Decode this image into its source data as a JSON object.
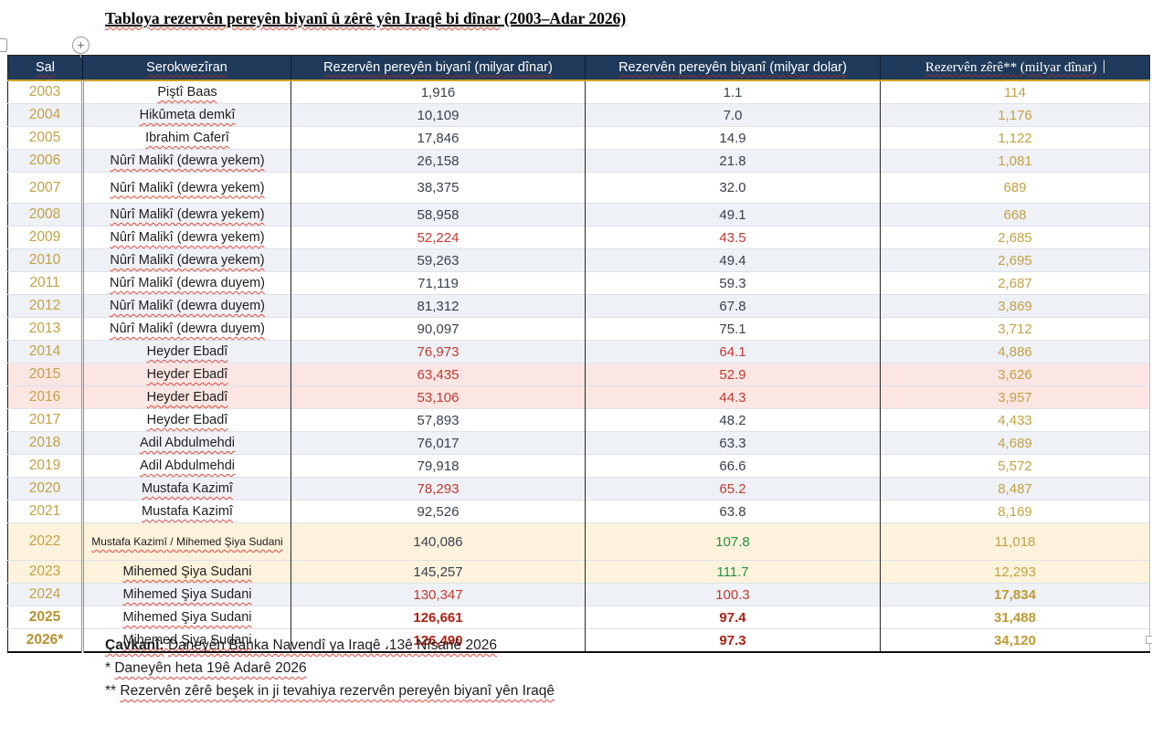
{
  "title": {
    "main": "Tabloya rezervên pereyên biyanî û zêrê yên Iraqê bi dînar",
    "suffix": "(2003–Adar 2026)"
  },
  "insert_column_button": {
    "glyph": "+"
  },
  "table": {
    "headers": [
      "Sal",
      "Serokwezîran",
      "Rezervên pereyên biyanî (milyar dînar)",
      "Rezervên pereyên biyanî (milyar dolar)",
      "Rezervên zêrê** (milyar dînar)"
    ],
    "rows": [
      {
        "year": "2003",
        "pm": "Piştî Baas",
        "dinar": "1,916",
        "dollar": "1.1",
        "gold": "114"
      },
      {
        "year": "2004",
        "pm": "Hikûmeta demkî",
        "dinar": "10,109",
        "dollar": "7.0",
        "gold": "1,176"
      },
      {
        "year": "2005",
        "pm": "Ibrahim Caferî",
        "dinar": "17,846",
        "dollar": "14.9",
        "gold": "1,122"
      },
      {
        "year": "2006",
        "pm": "Nûrî Malikî (dewra yekem)",
        "dinar": "26,158",
        "dollar": "21.8",
        "gold": "1,081"
      },
      {
        "year": "2007",
        "pm": "Nûrî Malikî (dewra yekem)",
        "dinar": "38,375",
        "dollar": "32.0",
        "gold": "689"
      },
      {
        "year": "2008",
        "pm": "Nûrî Malikî (dewra yekem)",
        "dinar": "58,958",
        "dollar": "49.1",
        "gold": "668"
      },
      {
        "year": "2009",
        "pm": "Nûrî Malikî (dewra yekem)",
        "dinar": "52,224",
        "dollar": "43.5",
        "gold": "2,685"
      },
      {
        "year": "2010",
        "pm": "Nûrî Malikî (dewra yekem)",
        "dinar": "59,263",
        "dollar": "49.4",
        "gold": "2,695"
      },
      {
        "year": "2011",
        "pm": "Nûrî Malikî (dewra duyem)",
        "dinar": "71,119",
        "dollar": "59.3",
        "gold": "2,687"
      },
      {
        "year": "2012",
        "pm": "Nûrî Malikî (dewra duyem)",
        "dinar": "81,312",
        "dollar": "67.8",
        "gold": "3,869"
      },
      {
        "year": "2013",
        "pm": "Nûrî Malikî (dewra duyem)",
        "dinar": "90,097",
        "dollar": "75.1",
        "gold": "3,712"
      },
      {
        "year": "2014",
        "pm": "Heyder Ebadî",
        "dinar": "76,973",
        "dollar": "64.1",
        "gold": "4,886"
      },
      {
        "year": "2015",
        "pm": "Heyder Ebadî",
        "dinar": "63,435",
        "dollar": "52.9",
        "gold": "3,626"
      },
      {
        "year": "2016",
        "pm": "Heyder Ebadî",
        "dinar": "53,106",
        "dollar": "44.3",
        "gold": "3,957"
      },
      {
        "year": "2017",
        "pm": "Heyder Ebadî",
        "dinar": "57,893",
        "dollar": "48.2",
        "gold": "4,433"
      },
      {
        "year": "2018",
        "pm": "Adil Abdulmehdi",
        "dinar": "76,017",
        "dollar": "63.3",
        "gold": "4,689"
      },
      {
        "year": "2019",
        "pm": "Adil Abdulmehdi",
        "dinar": "79,918",
        "dollar": "66.6",
        "gold": "5,572"
      },
      {
        "year": "2020",
        "pm": "Mustafa Kazimî",
        "dinar": "78,293",
        "dollar": "65.2",
        "gold": "8,487"
      },
      {
        "year": "2021",
        "pm": "Mustafa Kazimî",
        "dinar": "92,526",
        "dollar": "63.8",
        "gold": "8,169"
      },
      {
        "year": "2022",
        "pm": "Mustafa Kazimî / Mihemed Şiya Sudani",
        "dinar": "140,086",
        "dollar": "107.8",
        "gold": "11,018"
      },
      {
        "year": "2023",
        "pm": "Mihemed Şiya Sudani",
        "dinar": "145,257",
        "dollar": "111.7",
        "gold": "12,293"
      },
      {
        "year": "2024",
        "pm": "Mihemed Şiya Sudani",
        "dinar": "130,347",
        "dollar": "100.3",
        "gold": "17,834"
      },
      {
        "year": "2025",
        "pm": "Mihemed Şiya Sudani",
        "dinar": "126,661",
        "dollar": "97.4",
        "gold": "31,488"
      },
      {
        "year": "2026*",
        "pm": "Mihemed Şiya Sudani",
        "dinar": "126,490",
        "dollar": "97.3",
        "gold": "34,120"
      }
    ]
  },
  "footnotes": {
    "source_label": "Çavkanî:",
    "source_text": "Daneyên Banka Navendî ya Iraqê ،13ê Nîsanê 2026",
    "note1_prefix": "*",
    "note1_text": "Daneyên heta 19ê Adarê 2026",
    "note2_prefix": "**",
    "note2_text": "Rezervên zêrê beşek in ji tevahiya rezervên pereyên biyanî yên Iraqê"
  },
  "colors": {
    "header_bg": "#1f3a5a",
    "header_underline": "#c9a227",
    "gold_text": "#c3a145",
    "red_text": "#bf3a32",
    "bold_red_text": "#ad2013",
    "green_text": "#27913f",
    "band_row": "#eef1f6",
    "pink_row": "#fbe6e3",
    "cream_row": "#fdf3dc",
    "squiggle": "#e2473b"
  }
}
